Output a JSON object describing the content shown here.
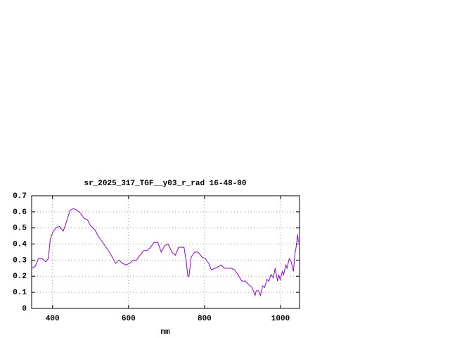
{
  "chart_data": {
    "type": "line",
    "title": "sr_2025_317_TGF__y03_r_rad 16-48-00",
    "x_label": "nm",
    "xlim": [
      345,
      1050
    ],
    "xticks": [
      400,
      600,
      800,
      1000
    ],
    "ylim": [
      0,
      0.7
    ],
    "yticks": [
      0,
      0.1,
      0.2,
      0.3,
      0.4,
      0.5,
      0.6,
      0.7
    ],
    "grid": true,
    "x": [
      345,
      354,
      363,
      372,
      382,
      389,
      394,
      400,
      409,
      418,
      428,
      437,
      446,
      455,
      465,
      474,
      483,
      492,
      501,
      511,
      520,
      529,
      538,
      547,
      557,
      566,
      575,
      584,
      593,
      603,
      612,
      621,
      630,
      640,
      649,
      658,
      667,
      677,
      686,
      695,
      704,
      714,
      723,
      732,
      741,
      746,
      752,
      756,
      759,
      765,
      774,
      783,
      793,
      802,
      811,
      818,
      828,
      837,
      844,
      852,
      861,
      870,
      879,
      888,
      898,
      907,
      916,
      925,
      933,
      936,
      942,
      947,
      953,
      958,
      964,
      969,
      975,
      981,
      986,
      992,
      995,
      999,
      1005,
      1008,
      1014,
      1017,
      1023,
      1028,
      1034,
      1038,
      1041,
      1045,
      1047
    ],
    "series": [
      {
        "name": "radiance",
        "color": "#9400d3",
        "values": [
          0.25,
          0.26,
          0.31,
          0.31,
          0.29,
          0.31,
          0.43,
          0.47,
          0.5,
          0.51,
          0.48,
          0.54,
          0.61,
          0.62,
          0.61,
          0.59,
          0.56,
          0.55,
          0.51,
          0.49,
          0.45,
          0.42,
          0.39,
          0.36,
          0.32,
          0.28,
          0.3,
          0.28,
          0.27,
          0.28,
          0.3,
          0.3,
          0.33,
          0.36,
          0.36,
          0.38,
          0.41,
          0.41,
          0.35,
          0.39,
          0.4,
          0.35,
          0.33,
          0.38,
          0.38,
          0.38,
          0.29,
          0.2,
          0.2,
          0.32,
          0.35,
          0.35,
          0.32,
          0.31,
          0.28,
          0.24,
          0.25,
          0.26,
          0.27,
          0.25,
          0.25,
          0.25,
          0.24,
          0.21,
          0.17,
          0.17,
          0.15,
          0.13,
          0.08,
          0.11,
          0.11,
          0.08,
          0.14,
          0.13,
          0.18,
          0.17,
          0.21,
          0.19,
          0.25,
          0.17,
          0.21,
          0.18,
          0.23,
          0.21,
          0.27,
          0.25,
          0.31,
          0.29,
          0.23,
          0.34,
          0.38,
          0.46,
          0.41
        ]
      }
    ]
  }
}
